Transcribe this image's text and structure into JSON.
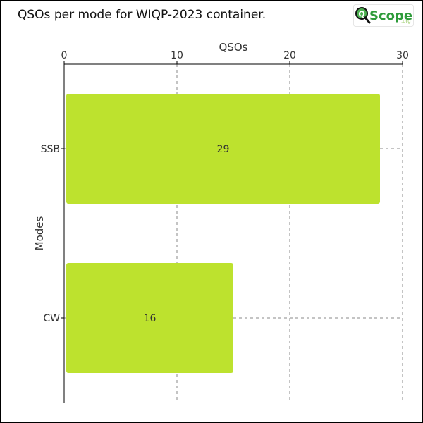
{
  "title": "QSOs per mode for WIQP-2023 container.",
  "logo": {
    "text_q": "Q",
    "text_scope": "Scope",
    "text_tld": ".org"
  },
  "chart_data": {
    "type": "bar",
    "orientation": "horizontal",
    "categories": [
      "SSB",
      "CW"
    ],
    "values": [
      29,
      16
    ],
    "xlabel": "QSOs",
    "ylabel": "Modes",
    "xlim": [
      0,
      30
    ],
    "xticks": [
      0,
      10,
      20,
      30
    ],
    "x_axis_position": "top",
    "grid": true,
    "bar_color": "#bde22e",
    "data_labels": true
  }
}
